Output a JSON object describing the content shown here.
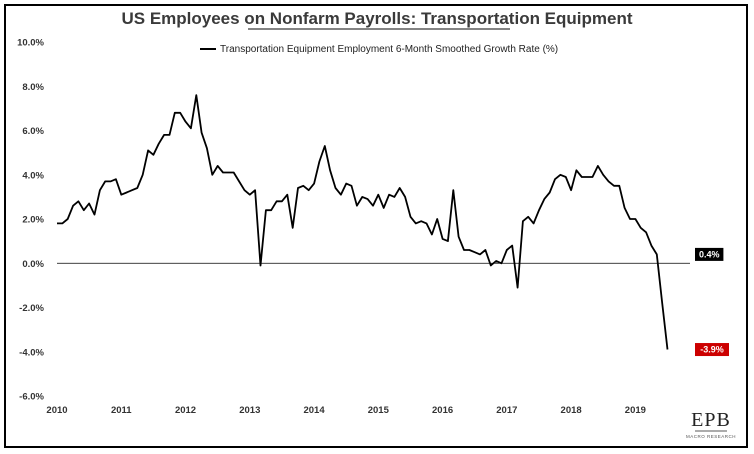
{
  "chart_data": {
    "type": "line",
    "title": "US Employees on Nonfarm Payrolls: Transportation Equipment",
    "series": [
      {
        "name": "Transportation Equipment Employment 6-Month Smoothed Growth Rate (%)",
        "color": "#000000",
        "x": [
          2010.0,
          2010.083,
          2010.167,
          2010.25,
          2010.333,
          2010.417,
          2010.5,
          2010.583,
          2010.667,
          2010.75,
          2010.833,
          2010.917,
          2011.0,
          2011.083,
          2011.167,
          2011.25,
          2011.333,
          2011.417,
          2011.5,
          2011.583,
          2011.667,
          2011.75,
          2011.833,
          2011.917,
          2012.0,
          2012.083,
          2012.167,
          2012.25,
          2012.333,
          2012.417,
          2012.5,
          2012.583,
          2012.667,
          2012.75,
          2012.833,
          2012.917,
          2013.0,
          2013.083,
          2013.167,
          2013.25,
          2013.333,
          2013.417,
          2013.5,
          2013.583,
          2013.667,
          2013.75,
          2013.833,
          2013.917,
          2014.0,
          2014.083,
          2014.167,
          2014.25,
          2014.333,
          2014.417,
          2014.5,
          2014.583,
          2014.667,
          2014.75,
          2014.833,
          2014.917,
          2015.0,
          2015.083,
          2015.167,
          2015.25,
          2015.333,
          2015.417,
          2015.5,
          2015.583,
          2015.667,
          2015.75,
          2015.833,
          2015.917,
          2016.0,
          2016.083,
          2016.167,
          2016.25,
          2016.333,
          2016.417,
          2016.5,
          2016.583,
          2016.667,
          2016.75,
          2016.833,
          2016.917,
          2017.0,
          2017.083,
          2017.167,
          2017.25,
          2017.333,
          2017.417,
          2017.5,
          2017.583,
          2017.667,
          2017.75,
          2017.833,
          2017.917,
          2018.0,
          2018.083,
          2018.167,
          2018.25,
          2018.333,
          2018.417,
          2018.5,
          2018.583,
          2018.667,
          2018.75,
          2018.833,
          2018.917,
          2019.0,
          2019.083,
          2019.167,
          2019.25,
          2019.333,
          2019.417,
          2019.5
        ],
        "y": [
          1.8,
          1.8,
          2.0,
          2.6,
          2.8,
          2.4,
          2.7,
          2.2,
          3.3,
          3.7,
          3.7,
          3.8,
          3.1,
          3.2,
          3.3,
          3.4,
          4.0,
          5.1,
          4.9,
          5.4,
          5.8,
          5.8,
          6.8,
          6.8,
          6.4,
          6.1,
          7.6,
          5.9,
          5.2,
          4.0,
          4.4,
          4.1,
          4.1,
          4.1,
          3.7,
          3.3,
          3.1,
          3.3,
          -0.1,
          2.4,
          2.4,
          2.8,
          2.8,
          3.1,
          1.6,
          3.4,
          3.5,
          3.3,
          3.6,
          4.6,
          5.3,
          4.2,
          3.4,
          3.1,
          3.6,
          3.5,
          2.6,
          3.0,
          2.9,
          2.6,
          3.1,
          2.5,
          3.1,
          3.0,
          3.4,
          3.0,
          2.1,
          1.8,
          1.9,
          1.8,
          1.3,
          2.0,
          1.1,
          1.0,
          3.3,
          1.2,
          0.6,
          0.6,
          0.5,
          0.4,
          0.6,
          -0.1,
          0.1,
          0.0,
          0.6,
          0.8,
          -1.1,
          1.9,
          2.1,
          1.8,
          2.4,
          2.9,
          3.2,
          3.8,
          4.0,
          3.9,
          3.3,
          4.2,
          3.9,
          3.9,
          3.9,
          4.4,
          4.0,
          3.7,
          3.5,
          3.5,
          2.5,
          2.0,
          2.0,
          1.6,
          1.4,
          0.8,
          0.4,
          -1.8,
          -3.9
        ]
      }
    ],
    "x_ticks": [
      "2010",
      "2011",
      "2012",
      "2013",
      "2014",
      "2015",
      "2016",
      "2017",
      "2018",
      "2019"
    ],
    "y_ticks": [
      "10.0%",
      "8.0%",
      "6.0%",
      "4.0%",
      "2.0%",
      "0.0%",
      "-2.0%",
      "-4.0%",
      "-6.0%"
    ],
    "xlim": [
      2010.0,
      2019.85
    ],
    "ylim": [
      -6,
      10
    ],
    "grid": false,
    "legend": "top-center",
    "annotations": [
      {
        "label": "0.4%",
        "value": 0.4,
        "color": "#000000"
      },
      {
        "label": "-3.9%",
        "value": -3.9,
        "color": "#cc0000"
      }
    ],
    "zero_line": true
  },
  "logo": {
    "main": "EPB",
    "sub": "MACRO RESEARCH"
  }
}
